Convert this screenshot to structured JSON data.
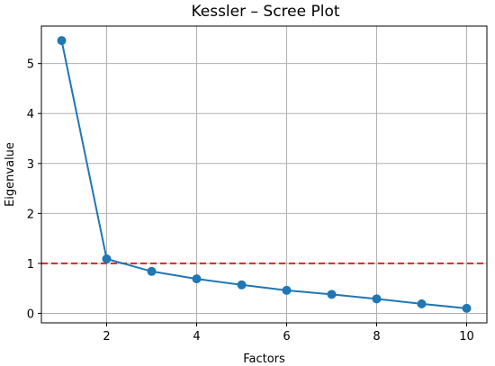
{
  "chart_data": {
    "type": "line",
    "title": "Kessler – Scree Plot",
    "xlabel": "Factors",
    "ylabel": "Eigenvalue",
    "xlim": [
      0.55,
      10.45
    ],
    "ylim": [
      -0.19,
      5.75
    ],
    "xticks": [
      2,
      4,
      6,
      8,
      10
    ],
    "yticks": [
      0,
      1,
      2,
      3,
      4,
      5
    ],
    "grid": true,
    "series": [
      {
        "x": [
          1,
          2,
          3,
          4,
          5,
          6,
          7,
          8,
          9,
          10
        ],
        "values": [
          5.46,
          1.09,
          0.84,
          0.69,
          0.57,
          0.46,
          0.38,
          0.29,
          0.19,
          0.1
        ],
        "color": "#1f77b4",
        "marker": "circle"
      }
    ],
    "reference_line": {
      "y": 1,
      "style": "dashed",
      "color": "#d62728"
    }
  }
}
